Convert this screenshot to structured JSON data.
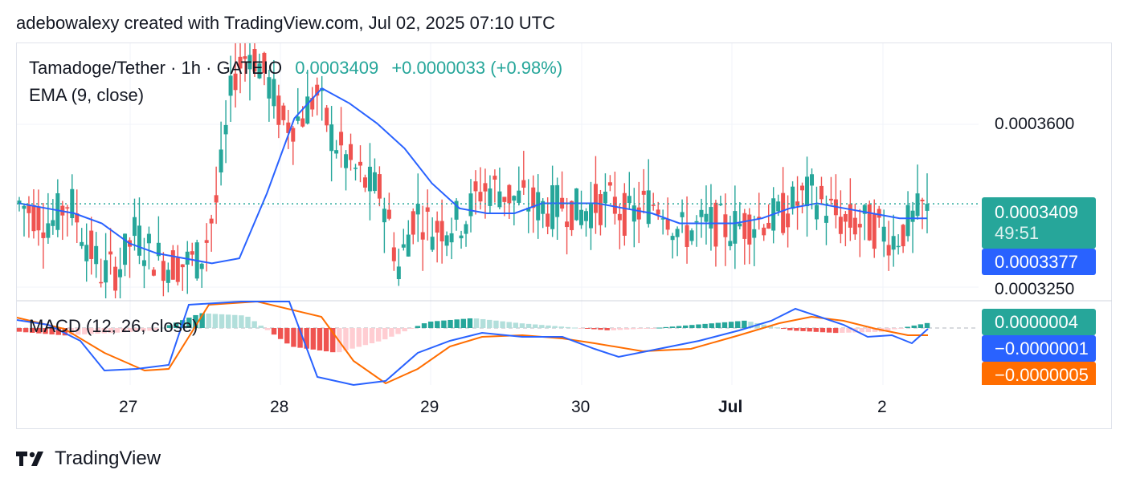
{
  "header": {
    "caption": "adebowalexy created with TradingView.com, Jul 02, 2025 07:10 UTC"
  },
  "legend": {
    "symbol": "Tamadoge/Tether · 1h · GATEIO",
    "price": "0.0003409",
    "change": "+0.0000033 (+0.98%)",
    "ema": "EMA (9, close)",
    "macd": "MACD (12, 26, close)"
  },
  "price_axis": {
    "labels": [
      "0.0003600",
      "0.0003250"
    ]
  },
  "tags": {
    "last_price": "0.0003409",
    "countdown": "49:51",
    "ema_value": "0.0003377",
    "macd_hist": "0.0000004",
    "macd_line": "−0.0000001",
    "signal_line": "−0.0000005"
  },
  "time_axis": {
    "labels": [
      "27",
      "28",
      "29",
      "30",
      "Jul",
      "2"
    ]
  },
  "footer": {
    "brand": "TradingView"
  },
  "colors": {
    "up": "#26a69a",
    "down": "#ef5350",
    "ema": "#2962ff",
    "signal": "#ff6d00",
    "hist_up_light": "#b2dfdb",
    "hist_down_light": "#ffcdd2"
  },
  "chart_data": {
    "type": "candlestick",
    "price_ylim": [
      0.000322,
      0.000373
    ],
    "x_day_ticks": [
      "27",
      "28",
      "29",
      "30",
      "Jul",
      "2"
    ],
    "candles_close_approx": [
      0.000341,
      0.000339,
      0.000337,
      0.000342,
      0.000334,
      0.000327,
      0.000328,
      0.000335,
      0.000331,
      0.000329,
      0.000329,
      0.00033,
      0.000342,
      0.000367,
      0.000372,
      0.000366,
      0.000357,
      0.000358,
      0.000363,
      0.000354,
      0.000349,
      0.000345,
      0.000343,
      0.000328,
      0.00034,
      0.000336,
      0.000337,
      0.000338,
      0.000344,
      0.000344,
      0.000342,
      0.000341,
      0.00034,
      0.000341,
      0.000339,
      0.000341,
      0.000341,
      0.000338,
      0.000341,
      0.000341,
      0.000335,
      0.000336,
      0.000337,
      0.000336,
      0.000337,
      0.000338,
      0.000338,
      0.000341,
      0.000343,
      0.00034,
      0.000337,
      0.000337,
      0.000336,
      0.000334,
      0.000337,
      0.000341
    ],
    "ema_approx": [
      0.000341,
      0.00034,
      0.000339,
      0.000337,
      0.000333,
      0.000331,
      0.00033,
      0.000329,
      0.00033,
      0.000343,
      0.000358,
      0.000364,
      0.000361,
      0.000357,
      0.000352,
      0.000345,
      0.00034,
      0.000339,
      0.000339,
      0.000341,
      0.000341,
      0.000341,
      0.00034,
      0.000339,
      0.000337,
      0.000337,
      0.000337,
      0.000338,
      0.00034,
      0.000341,
      0.00034,
      0.000339,
      0.000338,
      0.000338
    ],
    "macd_hist_approx": [
      -3e-07,
      -6e-07,
      -4e-07,
      -2e-07,
      1.2e-06,
      1e-06,
      -1.5e-06,
      -2e-06,
      -1e-06,
      5e-07,
      8e-07,
      4e-07,
      1e-07,
      -2e-07,
      0.0,
      3e-07,
      6e-07,
      -2e-07,
      -4e-07,
      -3e-07,
      4e-07
    ],
    "last_values": {
      "close": 0.0003409,
      "ema": 0.0003377,
      "macd": -1e-07,
      "signal": -5e-07,
      "hist": 4e-07
    }
  }
}
